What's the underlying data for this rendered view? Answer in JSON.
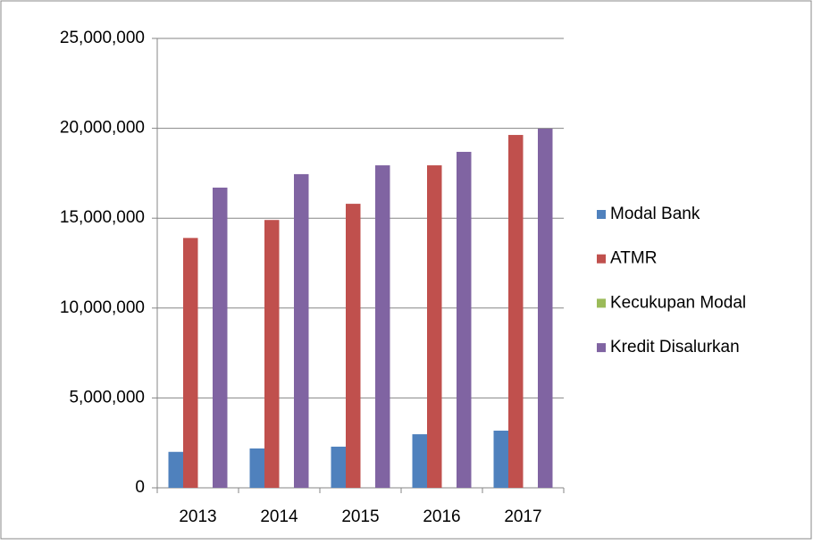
{
  "chart_data": {
    "type": "bar",
    "categories": [
      "2013",
      "2014",
      "2015",
      "2016",
      "2017"
    ],
    "series": [
      {
        "name": "Modal Bank",
        "color": "#4f81bd",
        "values": [
          2000000,
          2190000,
          2290000,
          2980000,
          3180000
        ]
      },
      {
        "name": "ATMR",
        "color": "#c0504d",
        "values": [
          13900000,
          14900000,
          15800000,
          17940000,
          19630000
        ]
      },
      {
        "name": "Kecukupan Modal",
        "color": "#9bbb59",
        "values": [
          0,
          0,
          0,
          0,
          0
        ]
      },
      {
        "name": "Kredit Disalurkan",
        "color": "#8064a2",
        "values": [
          16700000,
          17450000,
          17940000,
          18690000,
          19980000
        ]
      }
    ],
    "ylim": [
      0,
      25000000
    ],
    "yticks": [
      0,
      {
        "value": 5000000,
        "label": "5,000,000"
      },
      {
        "value": 10000000,
        "label": "10,000,000"
      },
      {
        "value": 15000000,
        "label": "15,000,000"
      },
      {
        "value": 20000000,
        "label": "20,000,000"
      },
      {
        "value": 25000000,
        "label": "25,000,000"
      }
    ],
    "grid": true,
    "legend": "right"
  }
}
